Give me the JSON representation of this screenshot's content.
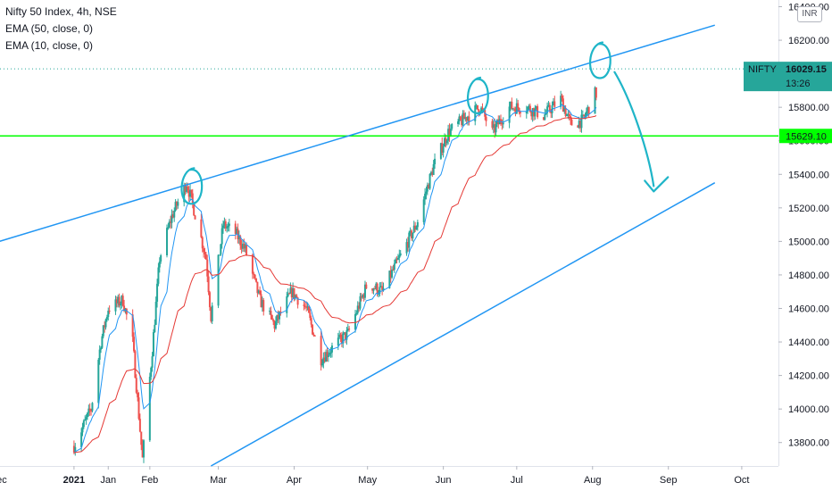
{
  "legend": {
    "title": "Nifty 50 Index, 4h, NSE",
    "ema50": "EMA (50, close, 0)",
    "ema10": "EMA (10, close, 0)"
  },
  "currency": "INR",
  "price_badge": {
    "symbol": "NIFTY",
    "price": "16029.15",
    "countdown": "13:26",
    "color": "#26a69a"
  },
  "level_badge": {
    "price": "15629.10",
    "color": "#00ff00"
  },
  "colors": {
    "up": "#26a69a",
    "down": "#ef5350",
    "ema10": "#2196f3",
    "ema50": "#e53935",
    "trendline": "#2196f3",
    "annotation": "#1fb5c8",
    "support_line": "#00ff00"
  },
  "chart_data": {
    "type": "candlestick",
    "title": "Nifty 50 Index, 4h, NSE",
    "y_ticks": [
      "16400.00",
      "16200.00",
      "16000.00",
      "15800.00",
      "15600.00",
      "15400.00",
      "15200.00",
      "15000.00",
      "14800.00",
      "14600.00",
      "14400.00",
      "14200.00",
      "14000.00",
      "13800.00"
    ],
    "ylim": [
      13660,
      16440
    ],
    "x_ticks": [
      "Dec",
      "2021",
      "Jan",
      "Feb",
      "Mar",
      "Apr",
      "May",
      "Jun",
      "Jul",
      "Aug",
      "Sep",
      "Oct"
    ],
    "x_tick_dates": [
      "2020-12-01",
      "2021-01-01",
      "2021-01-15",
      "2021-02-01",
      "2021-03-01",
      "2021-04-01",
      "2021-05-01",
      "2021-06-01",
      "2021-07-01",
      "2021-08-01",
      "2021-09-01",
      "2021-10-01"
    ],
    "xlim": [
      "2020-11-27",
      "2021-10-16"
    ],
    "anchors": [
      [
        "2021-01-01",
        13780
      ],
      [
        "2021-01-08",
        14000
      ],
      [
        "2021-01-12",
        14400
      ],
      [
        "2021-01-15",
        14600
      ],
      [
        "2021-01-21",
        14650
      ],
      [
        "2021-01-25",
        14400
      ],
      [
        "2021-01-29",
        13700
      ],
      [
        "2021-02-02",
        14350
      ],
      [
        "2021-02-05",
        14900
      ],
      [
        "2021-02-10",
        15150
      ],
      [
        "2021-02-16",
        15350
      ],
      [
        "2021-02-18",
        15250
      ],
      [
        "2021-02-24",
        14900
      ],
      [
        "2021-02-26",
        14550
      ],
      [
        "2021-03-03",
        15100
      ],
      [
        "2021-03-08",
        15050
      ],
      [
        "2021-03-12",
        14950
      ],
      [
        "2021-03-18",
        14650
      ],
      [
        "2021-03-24",
        14500
      ],
      [
        "2021-03-31",
        14700
      ],
      [
        "2021-04-06",
        14600
      ],
      [
        "2021-04-12",
        14300
      ],
      [
        "2021-04-19",
        14400
      ],
      [
        "2021-04-23",
        14450
      ],
      [
        "2021-05-01",
        14750
      ],
      [
        "2021-05-07",
        14700
      ],
      [
        "2021-05-14",
        14900
      ],
      [
        "2021-05-21",
        15100
      ],
      [
        "2021-05-28",
        15450
      ],
      [
        "2021-06-03",
        15650
      ],
      [
        "2021-06-11",
        15750
      ],
      [
        "2021-06-16",
        15800
      ],
      [
        "2021-06-21",
        15650
      ],
      [
        "2021-06-28",
        15800
      ],
      [
        "2021-07-05",
        15800
      ],
      [
        "2021-07-12",
        15750
      ],
      [
        "2021-07-19",
        15850
      ],
      [
        "2021-07-23",
        15700
      ],
      [
        "2021-07-28",
        15720
      ],
      [
        "2021-08-02",
        15880
      ]
    ],
    "series": [
      {
        "name": "EMA (10, close, 0)",
        "color": "#2196f3"
      },
      {
        "name": "EMA (50, close, 0)",
        "color": "#e53935"
      }
    ],
    "support_level": 15629.1,
    "last_price": 16029.15,
    "trendlines": [
      {
        "role": "upper",
        "from": [
          "2020-11-27",
          14980
        ],
        "to": [
          "2021-09-20",
          16290
        ]
      },
      {
        "role": "lower",
        "from": [
          "2021-02-26",
          13660
        ],
        "to": [
          "2021-09-20",
          15350
        ]
      }
    ],
    "marks": [
      {
        "kind": "circle",
        "at": [
          "2021-02-18",
          15320
        ]
      },
      {
        "kind": "circle",
        "at": [
          "2021-06-15",
          15860
        ]
      },
      {
        "kind": "circle",
        "at": [
          "2021-08-04",
          16070
        ]
      },
      {
        "kind": "arrow",
        "from": [
          "2021-08-10",
          16010
        ],
        "to": [
          "2021-08-26",
          15330
        ]
      }
    ],
    "grid": false,
    "legend": "top-left"
  }
}
